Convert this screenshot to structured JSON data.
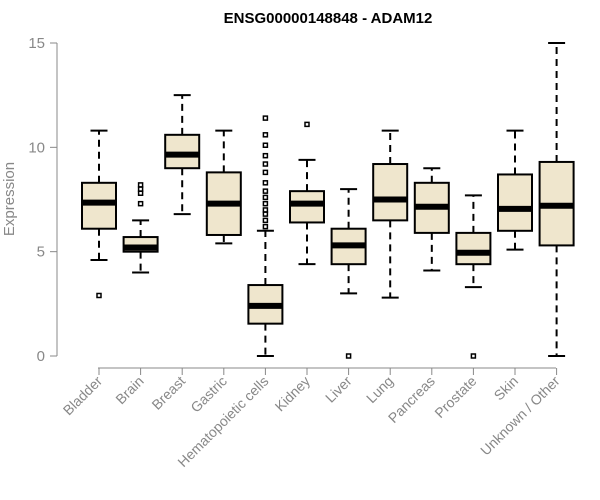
{
  "chart_data": {
    "type": "box",
    "title": "ENSG00000148848 - ADAM12",
    "xlabel": "",
    "ylabel": "Expression",
    "ylim": [
      0,
      15
    ],
    "yticks": [
      0,
      5,
      10,
      15
    ],
    "grid": false,
    "legend": "none",
    "box_fill": "#efe6cd",
    "categories": [
      "Bladder",
      "Brain",
      "Breast",
      "Gastric",
      "Hematopoietic cells",
      "Kidney",
      "Liver",
      "Lung",
      "Pancreas",
      "Prostate",
      "Skin",
      "Unknown / Other"
    ],
    "boxes": [
      {
        "min": 4.6,
        "q1": 6.1,
        "median": 7.35,
        "q3": 8.3,
        "max": 10.8,
        "outliers": [
          2.9
        ]
      },
      {
        "min": 4.0,
        "q1": 5.0,
        "median": 5.2,
        "q3": 5.7,
        "max": 6.5,
        "outliers": [
          7.3,
          7.8,
          8.0,
          8.2
        ]
      },
      {
        "min": 6.8,
        "q1": 9.0,
        "median": 9.65,
        "q3": 10.6,
        "max": 12.5,
        "outliers": []
      },
      {
        "min": 5.4,
        "q1": 5.8,
        "median": 7.3,
        "q3": 8.8,
        "max": 10.8,
        "outliers": []
      },
      {
        "min": 0.0,
        "q1": 1.55,
        "median": 2.4,
        "q3": 3.4,
        "max": 6.0,
        "outliers": [
          6.2,
          6.5,
          6.8,
          7.0,
          7.3,
          7.6,
          7.9,
          8.3,
          8.8,
          9.2,
          9.6,
          10.1,
          10.6,
          11.4
        ]
      },
      {
        "min": 4.4,
        "q1": 6.4,
        "median": 7.3,
        "q3": 7.9,
        "max": 9.4,
        "outliers": [
          11.1
        ]
      },
      {
        "min": 3.0,
        "q1": 4.4,
        "median": 5.3,
        "q3": 6.1,
        "max": 8.0,
        "outliers": [
          0.0
        ]
      },
      {
        "min": 2.8,
        "q1": 6.5,
        "median": 7.5,
        "q3": 9.2,
        "max": 10.8,
        "outliers": []
      },
      {
        "min": 4.1,
        "q1": 5.9,
        "median": 7.15,
        "q3": 8.3,
        "max": 9.0,
        "outliers": []
      },
      {
        "min": 3.3,
        "q1": 4.4,
        "median": 4.95,
        "q3": 5.9,
        "max": 7.7,
        "outliers": [
          0.0
        ]
      },
      {
        "min": 5.1,
        "q1": 6.0,
        "median": 7.05,
        "q3": 8.7,
        "max": 10.8,
        "outliers": []
      },
      {
        "min": 0.0,
        "q1": 5.3,
        "median": 7.2,
        "q3": 9.3,
        "max": 15.0,
        "outliers": []
      }
    ]
  }
}
